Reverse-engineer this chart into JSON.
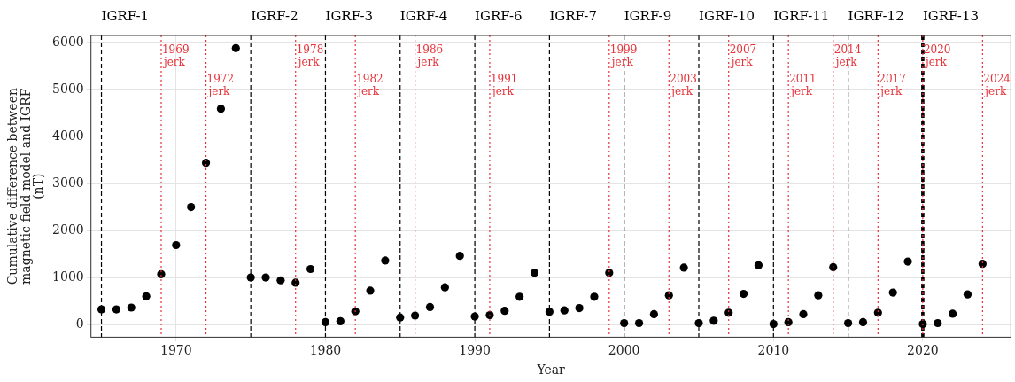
{
  "chart_data": {
    "type": "scatter",
    "xlabel": "Year",
    "ylabel": "Cumulative difference between\nmagnetic field model and IGRF\n(nT)",
    "x": [
      1965,
      1966,
      1967,
      1968,
      1969,
      1970,
      1971,
      1972,
      1973,
      1974,
      1975,
      1976,
      1977,
      1978,
      1979,
      1980,
      1981,
      1982,
      1983,
      1984,
      1985,
      1986,
      1987,
      1988,
      1989,
      1990,
      1991,
      1992,
      1993,
      1994,
      1995,
      1996,
      1997,
      1998,
      1999,
      2000,
      2001,
      2002,
      2003,
      2004,
      2005,
      2006,
      2007,
      2008,
      2009,
      2010,
      2011,
      2012,
      2013,
      2014,
      2015,
      2016,
      2017,
      2018,
      2019,
      2020,
      2021,
      2022,
      2023,
      2024
    ],
    "series": [
      {
        "color": "#000000",
        "values": [
          320,
          320,
          360,
          600,
          1070,
          1690,
          2500,
          3440,
          4590,
          5880,
          1000,
          1000,
          940,
          890,
          1180,
          50,
          70,
          280,
          720,
          1360,
          150,
          190,
          370,
          790,
          1460,
          170,
          200,
          290,
          590,
          1100,
          270,
          300,
          350,
          590,
          1100,
          30,
          30,
          220,
          620,
          1210,
          30,
          80,
          250,
          650,
          1260,
          10,
          50,
          220,
          620,
          1220,
          30,
          50,
          250,
          680,
          1340,
          10,
          30,
          230,
          640,
          1290
        ]
      }
    ],
    "marker": "circle",
    "xlim": [
      1964.3,
      2025.9
    ],
    "xticks": [
      1970,
      1980,
      1990,
      2000,
      2010,
      2020
    ],
    "ylim": [
      -270,
      6150
    ],
    "yticks": [
      0,
      1000,
      2000,
      3000,
      4000,
      5000,
      6000
    ],
    "grid": true,
    "legend": false,
    "ref_lines": [
      {
        "axis": "x",
        "value": 1965,
        "label": "IGRF-1",
        "color": "#000000",
        "line_style": "dashed"
      },
      {
        "axis": "x",
        "value": 1975,
        "label": "IGRF-2",
        "color": "#000000",
        "line_style": "dashed"
      },
      {
        "axis": "x",
        "value": 1980,
        "label": "IGRF-3",
        "color": "#000000",
        "line_style": "dashed"
      },
      {
        "axis": "x",
        "value": 1985,
        "label": "IGRF-4",
        "color": "#000000",
        "line_style": "dashed"
      },
      {
        "axis": "x",
        "value": 1990,
        "label": "IGRF-6",
        "color": "#000000",
        "line_style": "dashed"
      },
      {
        "axis": "x",
        "value": 1995,
        "label": "IGRF-7",
        "color": "#000000",
        "line_style": "dashed"
      },
      {
        "axis": "x",
        "value": 2000,
        "label": "IGRF-9",
        "color": "#000000",
        "line_style": "dashed"
      },
      {
        "axis": "x",
        "value": 2005,
        "label": "IGRF-10",
        "color": "#000000",
        "line_style": "dashed"
      },
      {
        "axis": "x",
        "value": 2010,
        "label": "IGRF-11",
        "color": "#000000",
        "line_style": "dashed"
      },
      {
        "axis": "x",
        "value": 2015,
        "label": "IGRF-12",
        "color": "#000000",
        "line_style": "dashed"
      },
      {
        "axis": "x",
        "value": 2020,
        "label": "IGRF-13",
        "color": "#000000",
        "line_style": "dashed"
      },
      {
        "axis": "x",
        "value": 1969,
        "label": "1969\njerk",
        "color": "#e8333a",
        "line_style": "dotted"
      },
      {
        "axis": "x",
        "value": 1972,
        "label": "1972\njerk",
        "color": "#e8333a",
        "line_style": "dotted"
      },
      {
        "axis": "x",
        "value": 1978,
        "label": "1978\njerk",
        "color": "#e8333a",
        "line_style": "dotted"
      },
      {
        "axis": "x",
        "value": 1982,
        "label": "1982\njerk",
        "color": "#e8333a",
        "line_style": "dotted"
      },
      {
        "axis": "x",
        "value": 1986,
        "label": "1986\njerk",
        "color": "#e8333a",
        "line_style": "dotted"
      },
      {
        "axis": "x",
        "value": 1991,
        "label": "1991\njerk",
        "color": "#e8333a",
        "line_style": "dotted"
      },
      {
        "axis": "x",
        "value": 1999,
        "label": "1999\njerk",
        "color": "#e8333a",
        "line_style": "dotted"
      },
      {
        "axis": "x",
        "value": 2003,
        "label": "2003\njerk",
        "color": "#e8333a",
        "line_style": "dotted"
      },
      {
        "axis": "x",
        "value": 2007,
        "label": "2007\njerk",
        "color": "#e8333a",
        "line_style": "dotted"
      },
      {
        "axis": "x",
        "value": 2011,
        "label": "2011\njerk",
        "color": "#e8333a",
        "line_style": "dotted"
      },
      {
        "axis": "x",
        "value": 2014,
        "label": "2014\njerk",
        "color": "#e8333a",
        "line_style": "dotted"
      },
      {
        "axis": "x",
        "value": 2017,
        "label": "2017\njerk",
        "color": "#e8333a",
        "line_style": "dotted"
      },
      {
        "axis": "x",
        "value": 2020,
        "label": "2020\njerk",
        "color": "#e8333a",
        "line_style": "dotted"
      },
      {
        "axis": "x",
        "value": 2024,
        "label": "2024\njerk",
        "color": "#e8333a",
        "line_style": "dotted"
      }
    ]
  }
}
